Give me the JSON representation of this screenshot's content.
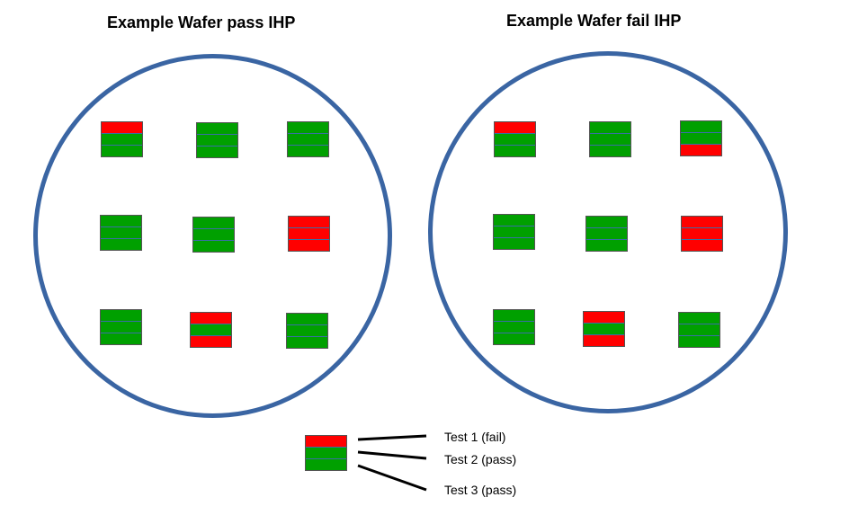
{
  "titles": {
    "left": "Example Wafer pass IHP",
    "right": "Example Wafer fail IHP"
  },
  "colors": {
    "pass": "#00a000",
    "fail": "#ff0000",
    "wafer_outline": "#3a65a3"
  },
  "wafers": {
    "left": {
      "dies": [
        [
          "fail",
          "pass",
          "pass"
        ],
        [
          "pass",
          "pass",
          "pass"
        ],
        [
          "pass",
          "pass",
          "pass"
        ],
        [
          "pass",
          "pass",
          "pass"
        ],
        [
          "pass",
          "pass",
          "pass"
        ],
        [
          "fail",
          "fail",
          "fail"
        ],
        [
          "pass",
          "pass",
          "pass"
        ],
        [
          "fail",
          "pass",
          "fail"
        ],
        [
          "pass",
          "pass",
          "pass"
        ]
      ]
    },
    "right": {
      "dies": [
        [
          "fail",
          "pass",
          "pass"
        ],
        [
          "pass",
          "pass",
          "pass"
        ],
        [
          "pass",
          "pass",
          "fail"
        ],
        [
          "pass",
          "pass",
          "pass"
        ],
        [
          "pass",
          "pass",
          "pass"
        ],
        [
          "fail",
          "fail",
          "fail"
        ],
        [
          "pass",
          "pass",
          "pass"
        ],
        [
          "fail",
          "pass",
          "fail"
        ],
        [
          "pass",
          "pass",
          "pass"
        ]
      ]
    }
  },
  "legend": {
    "die": [
      "fail",
      "pass",
      "pass"
    ],
    "labels": [
      "Test 1 (fail)",
      "Test 2 (pass)",
      "Test 3 (pass)"
    ]
  }
}
